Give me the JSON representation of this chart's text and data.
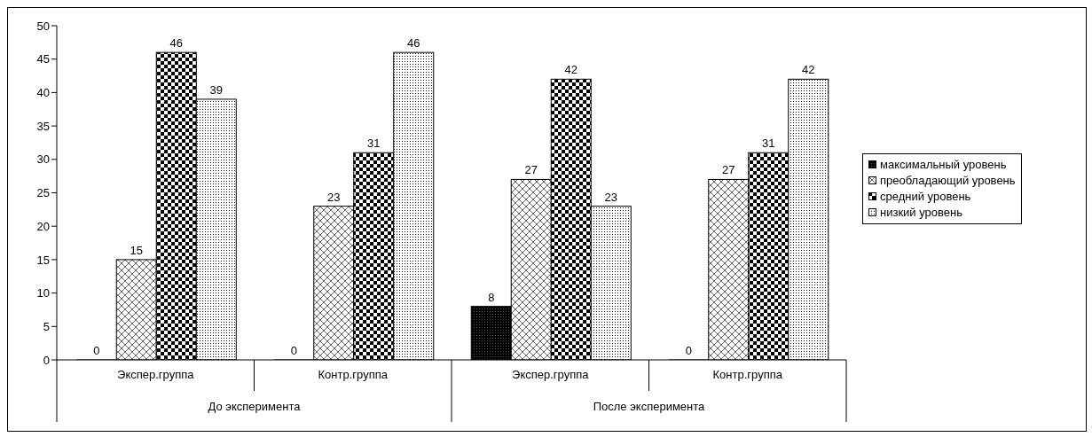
{
  "chart_data": {
    "type": "bar",
    "categories": [
      "Экспер.группа",
      "Контр.группа",
      "Экспер.группа",
      "Контр.группа"
    ],
    "annotations": [
      "До эксперимента",
      "После эксперимента"
    ],
    "series": [
      {
        "name": "максимальный уровень",
        "color": "#000000",
        "values": [
          0,
          0,
          8,
          0
        ]
      },
      {
        "name": "преобладающий уровень",
        "color": "#000000",
        "values": [
          15,
          23,
          27,
          27
        ]
      },
      {
        "name": "средний уровень",
        "color": "#000000",
        "values": [
          46,
          31,
          42,
          31
        ]
      },
      {
        "name": "низкий уровень",
        "color": "#000000",
        "values": [
          39,
          46,
          23,
          42
        ]
      }
    ],
    "ylim": [
      0,
      50
    ],
    "yticks": [
      0,
      5,
      10,
      15,
      20,
      25,
      30,
      35,
      40,
      45,
      50
    ],
    "data_labels": true,
    "legend": "right",
    "grid": false
  }
}
